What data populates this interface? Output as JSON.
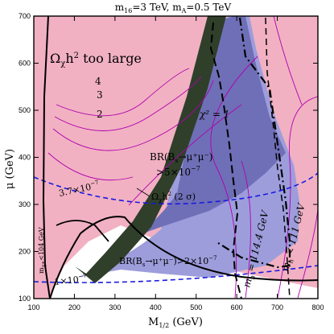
{
  "chart_data": {
    "type": "contour",
    "title": "m16=3 TeV, mA=0.5 TeV",
    "xlabel": "M1/2 (GeV)",
    "ylabel": "μ (GeV)",
    "xlim": [
      100,
      800
    ],
    "ylim": [
      100,
      700
    ],
    "xticks": [
      100,
      200,
      300,
      400,
      500,
      600,
      700,
      800
    ],
    "yticks": [
      100,
      200,
      300,
      400,
      500,
      600,
      700
    ],
    "colors": {
      "excluded": "#f1b1c2",
      "brbs_strong": "#6f6fb7",
      "brbs_weak": "#9d9ddc",
      "relic_band": "#2f3f2a",
      "chi2_lines": "#b000b0",
      "limit_lines": "#1a1ae0",
      "boundary": "#000000"
    },
    "regions": [
      {
        "name": "Ωχh² too large"
      },
      {
        "name": "BR(Bs→μ⁺μ⁻) > 5×10⁻⁷"
      },
      {
        "name": "BR(Bs→μ⁺μ⁻) > 2×10⁻⁷"
      }
    ],
    "annotations": {
      "title_main": "m",
      "title_sub1": "16",
      "title_mid": "=3 TeV,  m",
      "title_sub2": "A",
      "title_end": "=0.5 TeV",
      "xlabel_main": "M",
      "xlabel_sub": "1/2",
      "xlabel_unit": " (GeV)",
      "ylabel": "μ (GeV)",
      "omega_main": "Ω",
      "omega_sub": "χ",
      "omega_rest": "h",
      "omega_sup": "2",
      "omega_tail": " too large",
      "relic_label_main": "Ω",
      "relic_label_sub": "χ",
      "relic_label_rest": "h",
      "relic_label_sup": "2",
      "relic_label_tail": " (2 σ)",
      "br5_line1": "BR(B",
      "br5_sub": "s",
      "br5_line1b": "→μ⁺μ⁻)",
      "br5_line2": ">5×10",
      "br5_exp": "−7",
      "br2_main": "BR(B",
      "br2_sub": "s",
      "br2_rest": "→μ⁺μ⁻)>2×10",
      "br2_exp": "−7",
      "chi2_label": "χ² = 1",
      "contour_4": "4",
      "contour_3": "3",
      "contour_2": "2",
      "limit_37": "3.7×10",
      "limit_37_exp": "−7",
      "limit_1": "1×10",
      "limit_1_exp": "−7",
      "mchi_label": "m",
      "mchi_sub": "χ±",
      "mchi_rest": "<104 GeV",
      "mh1_main": "m",
      "mh1_sub": "h",
      "mh1_rest": " = 114.4 GeV",
      "mh2_main": "m",
      "mh2_sub": "h",
      "mh2_rest": " < 111 GeV"
    }
  }
}
